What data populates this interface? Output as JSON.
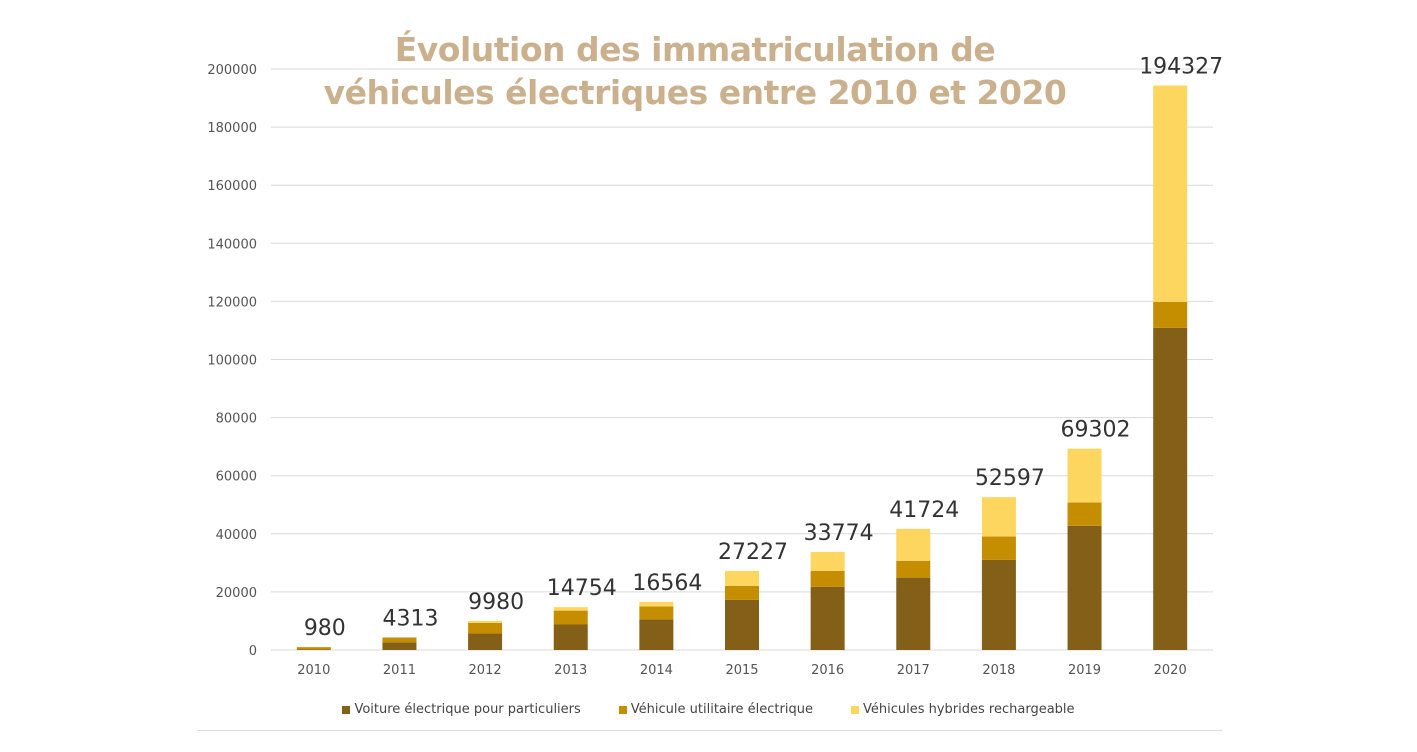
{
  "chart_data": {
    "type": "bar",
    "stacked": true,
    "title": "Évolution des immatriculation de véhicules électriques entre 2010 et 2020",
    "title_lines": [
      "Évolution des immatriculation de",
      "véhicules électriques entre 2010 et 2020"
    ],
    "categories": [
      "2010",
      "2011",
      "2012",
      "2013",
      "2014",
      "2015",
      "2016",
      "2017",
      "2018",
      "2019",
      "2020"
    ],
    "series": [
      {
        "name": "Voiture électrique pour particuliers",
        "color": "#845f17",
        "values": [
          180,
          2630,
          5663,
          8779,
          10560,
          17266,
          21758,
          24910,
          31055,
          42763,
          110916
        ]
      },
      {
        "name": "Véhicule utilitaire électrique",
        "color": "#c58d00",
        "values": [
          800,
          1683,
          3652,
          4775,
          4400,
          4800,
          5500,
          5800,
          8000,
          8000,
          8900
        ]
      },
      {
        "name": "Véhicules hybrides rechargeable",
        "color": "#fdd660",
        "values": [
          0,
          0,
          665,
          1200,
          1604,
          5161,
          6516,
          11014,
          13542,
          18539,
          74511
        ]
      }
    ],
    "totals": [
      "980",
      "4313",
      "9980",
      "14754",
      "16564",
      "27227",
      "33774",
      "41724",
      "52597",
      "69302",
      "194327"
    ],
    "yticks": [
      "0",
      "20000",
      "40000",
      "60000",
      "80000",
      "100000",
      "120000",
      "140000",
      "160000",
      "180000",
      "200000"
    ],
    "ylim": [
      0,
      200000
    ],
    "grid": true,
    "legend_position": "bottom",
    "xlabel": "",
    "ylabel": ""
  }
}
